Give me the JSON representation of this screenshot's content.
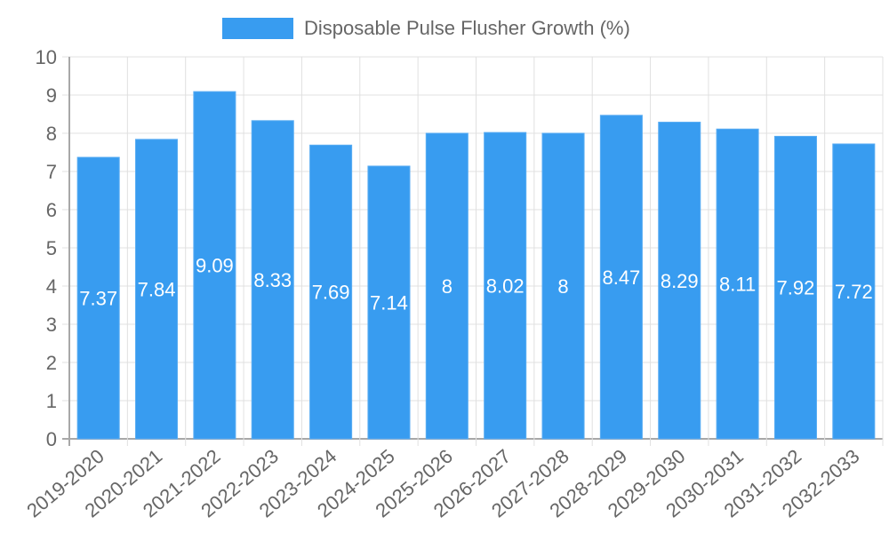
{
  "chart_data": {
    "type": "bar",
    "title": "",
    "legend": [
      {
        "label": "Disposable Pulse Flusher Growth (%)",
        "color": "#389CF0"
      }
    ],
    "legend_position": "top",
    "xlabel": "",
    "ylabel": "",
    "ylim": [
      0,
      10
    ],
    "yticks": [
      0,
      1,
      2,
      3,
      4,
      5,
      6,
      7,
      8,
      9,
      10
    ],
    "grid": true,
    "categories": [
      "2019-2020",
      "2020-2021",
      "2021-2022",
      "2022-2023",
      "2023-2024",
      "2024-2025",
      "2025-2026",
      "2026-2027",
      "2027-2028",
      "2028-2029",
      "2029-2030",
      "2030-2031",
      "2031-2032",
      "2032-2033"
    ],
    "series": [
      {
        "name": "Disposable Pulse Flusher Growth (%)",
        "color": "#389CF0",
        "values": [
          7.37,
          7.84,
          9.09,
          8.33,
          7.69,
          7.14,
          8,
          8.02,
          8,
          8.47,
          8.29,
          8.11,
          7.92,
          7.72
        ],
        "labels": [
          "7.37",
          "7.84",
          "9.09",
          "8.33",
          "7.69",
          "7.14",
          "8",
          "8.02",
          "8",
          "8.47",
          "8.29",
          "8.11",
          "7.92",
          "7.72"
        ]
      }
    ]
  },
  "colors": {
    "bar": "#389CF0",
    "bar_border": "#5AADF3",
    "grid": "#E0E0E0",
    "axis": "#A8A8A8",
    "text": "#666666"
  }
}
